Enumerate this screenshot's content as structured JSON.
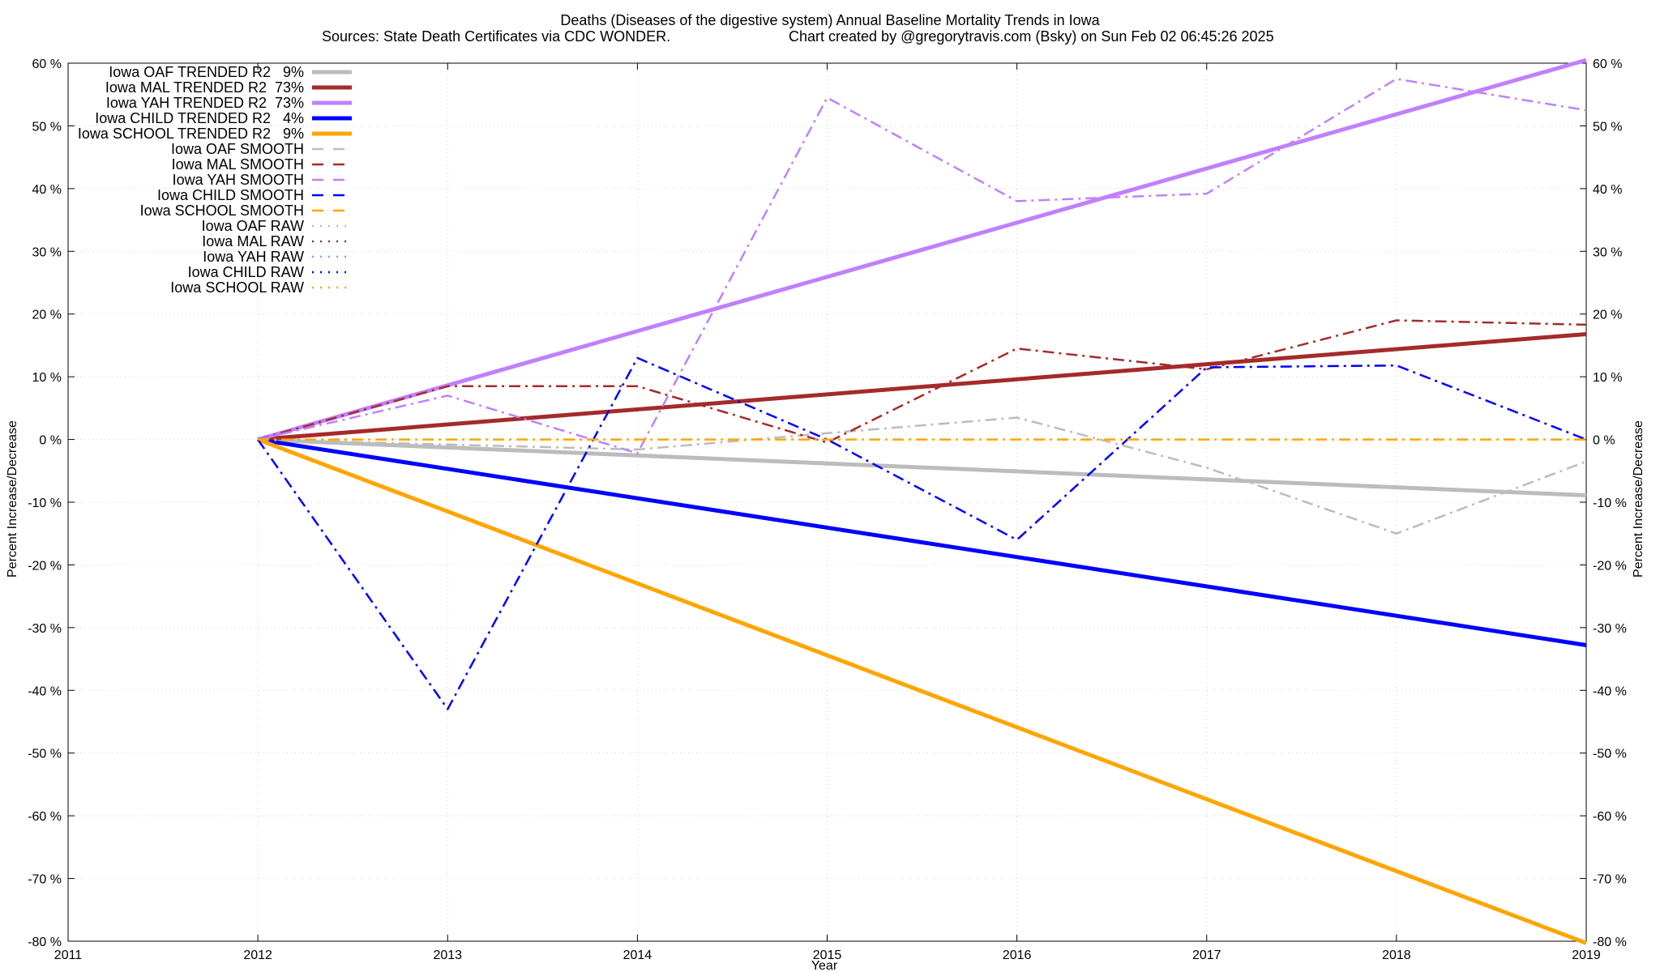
{
  "chart_data": {
    "type": "line",
    "title_line1": "Deaths (Diseases of the digestive system)  Annual Baseline Mortality Trends in Iowa",
    "title_line2_left": "Sources: State Death Certificates via CDC WONDER.",
    "title_line2_right": "Chart created by @gregorytravis.com (Bsky) on Sun Feb 02 06:45:26 2025",
    "xlabel": "Year",
    "ylabel_left": "Percent Increase/Decrease",
    "ylabel_right": "Percent Increase/Decrease",
    "xlim": [
      2011,
      2019
    ],
    "ylim": [
      -80,
      60
    ],
    "x_ticks": [
      "2011",
      "2012",
      "2013",
      "2014",
      "2015",
      "2016",
      "2017",
      "2018",
      "2019"
    ],
    "y_ticks": [
      "60 %",
      "50 %",
      "40 %",
      "30 %",
      "20 %",
      "10 %",
      "0 %",
      "-10 %",
      "-20 %",
      "-30 %",
      "-40 %",
      "-50 %",
      "-60 %",
      "-70 %",
      "-80 %"
    ],
    "y_tick_values": [
      60,
      50,
      40,
      30,
      20,
      10,
      0,
      -10,
      -20,
      -30,
      -40,
      -50,
      -60,
      -70,
      -80
    ],
    "grid": true,
    "legend_position": "top-left",
    "series": [
      {
        "name": "Iowa OAF TRENDED R2   9%",
        "style": "trend",
        "color": "#bcbcbc",
        "x": [
          2012,
          2019
        ],
        "y": [
          0,
          -8.9
        ]
      },
      {
        "name": "Iowa MAL TRENDED R2  73%",
        "style": "trend",
        "color": "#a52a2a",
        "x": [
          2012,
          2019
        ],
        "y": [
          0,
          16.8
        ]
      },
      {
        "name": "Iowa YAH TRENDED R2  73%",
        "style": "trend",
        "color": "#c080ff",
        "x": [
          2012,
          2019
        ],
        "y": [
          0,
          60.5
        ]
      },
      {
        "name": "Iowa CHILD TRENDED R2   4%",
        "style": "trend",
        "color": "#0000ff",
        "x": [
          2012,
          2019
        ],
        "y": [
          0,
          -32.8
        ]
      },
      {
        "name": "Iowa SCHOOL TRENDED R2   9%",
        "style": "trend",
        "color": "#ffa500",
        "x": [
          2012,
          2019
        ],
        "y": [
          0,
          -80.3
        ]
      },
      {
        "name": "Iowa OAF SMOOTH",
        "style": "smooth",
        "color": "#bcbcbc",
        "x": [
          2012,
          2013,
          2014,
          2015,
          2016,
          2017,
          2018,
          2019
        ],
        "y": [
          0,
          -0.8,
          -1.6,
          1.0,
          3.5,
          -4.5,
          -15.0,
          -3.5
        ]
      },
      {
        "name": "Iowa MAL SMOOTH",
        "style": "smooth",
        "color": "#a52a2a",
        "x": [
          2012,
          2013,
          2014,
          2015,
          2016,
          2017,
          2018,
          2019
        ],
        "y": [
          0,
          8.5,
          8.5,
          -0.5,
          14.5,
          11.2,
          19.0,
          18.3
        ]
      },
      {
        "name": "Iowa YAH SMOOTH",
        "style": "smooth",
        "color": "#c080ff",
        "x": [
          2012,
          2013,
          2014,
          2015,
          2016,
          2017,
          2018,
          2019
        ],
        "y": [
          0,
          7.0,
          -2.2,
          54.5,
          38.0,
          39.2,
          57.5,
          52.5
        ]
      },
      {
        "name": "Iowa CHILD SMOOTH",
        "style": "smooth",
        "color": "#0000ff",
        "x": [
          2012,
          2013,
          2014,
          2015,
          2016,
          2017,
          2018,
          2019
        ],
        "y": [
          0,
          -43.0,
          13.0,
          0,
          -16.0,
          11.5,
          11.8,
          0
        ]
      },
      {
        "name": "Iowa SCHOOL SMOOTH",
        "style": "smooth",
        "color": "#ffa500",
        "x": [
          2012,
          2013,
          2014,
          2015,
          2016,
          2017,
          2018,
          2019
        ],
        "y": [
          0,
          0,
          0,
          0,
          0,
          0,
          0,
          0
        ]
      },
      {
        "name": "Iowa OAF RAW",
        "style": "raw",
        "color": "#bcbcbc",
        "x": [],
        "y": []
      },
      {
        "name": "Iowa MAL RAW",
        "style": "raw",
        "color": "#a52a2a",
        "x": [],
        "y": []
      },
      {
        "name": "Iowa YAH RAW",
        "style": "raw",
        "color": "#c080ff",
        "x": [],
        "y": []
      },
      {
        "name": "Iowa CHILD RAW",
        "style": "raw",
        "color": "#0000ff",
        "x": [],
        "y": []
      },
      {
        "name": "Iowa SCHOOL RAW",
        "style": "raw",
        "color": "#ffa500",
        "x": [],
        "y": []
      }
    ]
  }
}
